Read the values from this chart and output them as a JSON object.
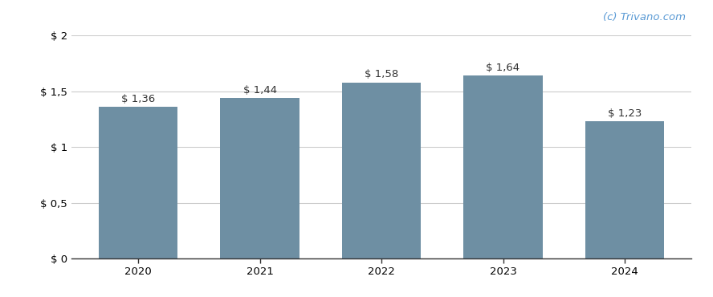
{
  "categories": [
    "2020",
    "2021",
    "2022",
    "2023",
    "2024"
  ],
  "values": [
    1.36,
    1.44,
    1.58,
    1.64,
    1.23
  ],
  "bar_color": "#6e8fa3",
  "bar_width": 0.65,
  "ylim": [
    0,
    2.0
  ],
  "yticks": [
    0,
    0.5,
    1.0,
    1.5,
    2.0
  ],
  "ytick_labels": [
    "$ 0",
    "$ 0,5",
    "$ 1",
    "$ 1,5",
    "$ 2"
  ],
  "value_labels": [
    "$ 1,36",
    "$ 1,44",
    "$ 1,58",
    "$ 1,64",
    "$ 1,23"
  ],
  "watermark": "(c) Trivano.com",
  "watermark_color": "#5b9bd5",
  "background_color": "#ffffff",
  "grid_color": "#cccccc",
  "label_fontsize": 9.5,
  "tick_fontsize": 9.5,
  "watermark_fontsize": 9.5,
  "fig_width": 8.88,
  "fig_height": 3.7,
  "dpi": 100
}
